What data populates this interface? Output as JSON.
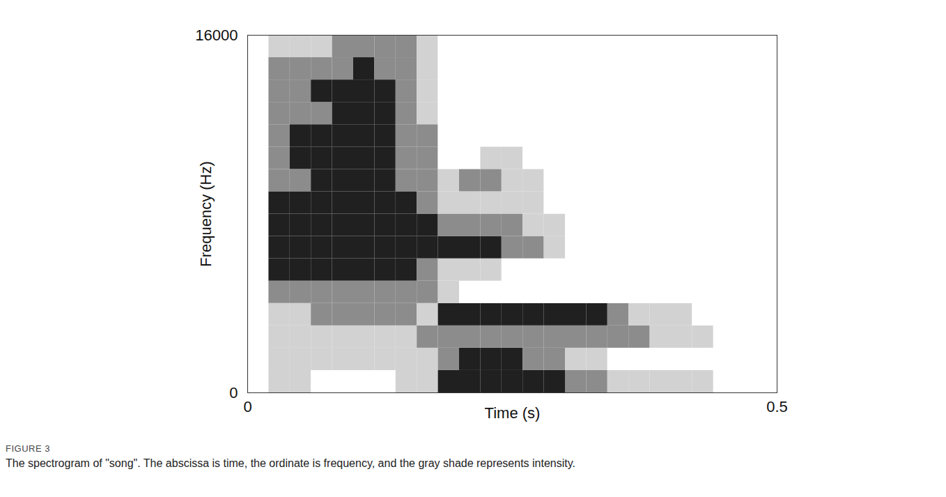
{
  "chart_data": {
    "type": "heatmap",
    "x_label": "Time (s)",
    "y_label": "Frequency (Hz)",
    "caption": {
      "label": "FIGURE 3",
      "text": "The spectrogram of \"song\". The abscissa is time, the ordinate is frequency, and the gray shade represents intensity."
    },
    "xlim": [
      0,
      0.5
    ],
    "xticks": [
      0,
      0.5
    ],
    "ylim": [
      0,
      16000
    ],
    "yticks": [
      0,
      16000
    ],
    "x_bins": [
      0,
      0.02,
      0.04,
      0.06,
      0.08,
      0.1,
      0.12,
      0.14,
      0.16,
      0.18,
      0.2,
      0.22,
      0.24,
      0.26,
      0.28,
      0.3,
      0.32,
      0.34,
      0.36,
      0.38,
      0.4,
      0.42,
      0.44,
      0.46,
      0.48,
      0.5
    ],
    "y_bins": [
      0,
      1000,
      2000,
      3000,
      4000,
      5000,
      6000,
      7000,
      8000,
      9000,
      10000,
      11000,
      12000,
      13000,
      14000,
      15000,
      16000
    ],
    "colors": [
      "#ffffff",
      "#d2d2d2",
      "#8c8c8c",
      "#202020"
    ],
    "cells": [
      [
        0,
        1,
        1,
        0,
        0,
        0,
        0,
        1,
        1,
        3,
        3,
        3,
        3,
        3,
        3,
        2,
        2,
        1,
        1,
        1,
        1,
        1,
        0,
        0,
        0
      ],
      [
        0,
        1,
        1,
        1,
        1,
        1,
        1,
        1,
        1,
        2,
        3,
        3,
        3,
        2,
        2,
        1,
        1,
        0,
        0,
        0,
        0,
        0,
        0,
        0,
        0
      ],
      [
        0,
        1,
        1,
        1,
        1,
        1,
        1,
        1,
        2,
        2,
        2,
        2,
        2,
        2,
        2,
        2,
        2,
        2,
        2,
        1,
        1,
        1,
        0,
        0,
        0
      ],
      [
        0,
        1,
        1,
        2,
        2,
        2,
        2,
        2,
        1,
        3,
        3,
        3,
        3,
        3,
        3,
        3,
        3,
        2,
        1,
        1,
        1,
        0,
        0,
        0,
        0
      ],
      [
        0,
        2,
        2,
        2,
        2,
        2,
        2,
        2,
        2,
        1,
        0,
        0,
        0,
        0,
        0,
        0,
        0,
        0,
        0,
        0,
        0,
        0,
        0,
        0,
        0
      ],
      [
        0,
        3,
        3,
        3,
        3,
        3,
        3,
        3,
        2,
        1,
        1,
        1,
        0,
        0,
        0,
        0,
        0,
        0,
        0,
        0,
        0,
        0,
        0,
        0,
        0
      ],
      [
        0,
        3,
        3,
        3,
        3,
        3,
        3,
        3,
        3,
        3,
        3,
        3,
        2,
        2,
        1,
        0,
        0,
        0,
        0,
        0,
        0,
        0,
        0,
        0,
        0
      ],
      [
        0,
        3,
        3,
        3,
        3,
        3,
        3,
        3,
        3,
        2,
        2,
        2,
        2,
        1,
        1,
        0,
        0,
        0,
        0,
        0,
        0,
        0,
        0,
        0,
        0
      ],
      [
        0,
        3,
        3,
        3,
        3,
        3,
        3,
        3,
        2,
        1,
        1,
        1,
        1,
        1,
        0,
        0,
        0,
        0,
        0,
        0,
        0,
        0,
        0,
        0,
        0
      ],
      [
        0,
        2,
        2,
        3,
        3,
        3,
        3,
        2,
        2,
        1,
        2,
        2,
        1,
        1,
        0,
        0,
        0,
        0,
        0,
        0,
        0,
        0,
        0,
        0,
        0
      ],
      [
        0,
        2,
        3,
        3,
        3,
        3,
        3,
        2,
        2,
        0,
        0,
        1,
        1,
        0,
        0,
        0,
        0,
        0,
        0,
        0,
        0,
        0,
        0,
        0,
        0
      ],
      [
        0,
        2,
        3,
        3,
        3,
        3,
        3,
        2,
        2,
        0,
        0,
        0,
        0,
        0,
        0,
        0,
        0,
        0,
        0,
        0,
        0,
        0,
        0,
        0,
        0
      ],
      [
        0,
        2,
        2,
        2,
        3,
        3,
        3,
        2,
        1,
        0,
        0,
        0,
        0,
        0,
        0,
        0,
        0,
        0,
        0,
        0,
        0,
        0,
        0,
        0,
        0
      ],
      [
        0,
        2,
        2,
        3,
        3,
        3,
        3,
        2,
        1,
        0,
        0,
        0,
        0,
        0,
        0,
        0,
        0,
        0,
        0,
        0,
        0,
        0,
        0,
        0,
        0
      ],
      [
        0,
        2,
        2,
        2,
        2,
        3,
        2,
        2,
        1,
        0,
        0,
        0,
        0,
        0,
        0,
        0,
        0,
        0,
        0,
        0,
        0,
        0,
        0,
        0,
        0
      ],
      [
        0,
        1,
        1,
        1,
        2,
        2,
        2,
        2,
        1,
        0,
        0,
        0,
        0,
        0,
        0,
        0,
        0,
        0,
        0,
        0,
        0,
        0,
        0,
        0,
        0
      ]
    ]
  }
}
